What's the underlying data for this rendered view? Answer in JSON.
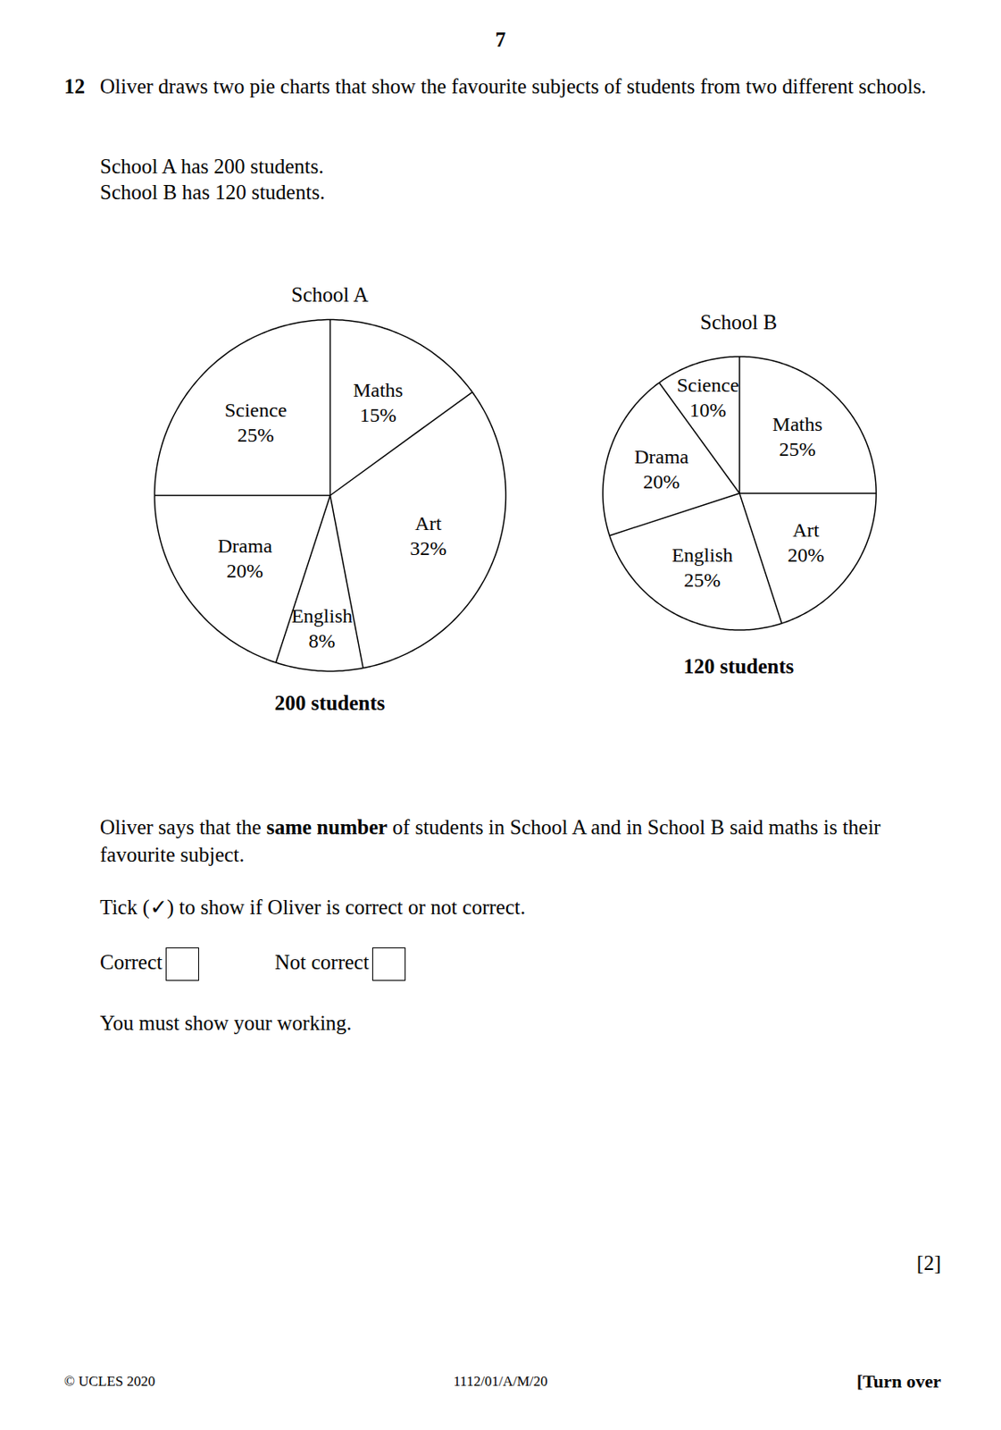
{
  "page_number": "7",
  "question": {
    "number": "12",
    "text": "Oliver draws two pie charts that show the favourite subjects of students from two different schools.",
    "facts": [
      "School A has 200 students.",
      "School B has 120 students."
    ],
    "statement": {
      "before": "Oliver says that the ",
      "bold": "same number",
      "after": " of students in School A and in School B said maths is their favourite subject."
    },
    "instruction": "Tick (✓) to show if Oliver is correct or not correct.",
    "options": [
      "Correct",
      "Not correct"
    ],
    "working": "You must show your working.",
    "marks": "[2]"
  },
  "chart_data": [
    {
      "type": "pie",
      "title": "School A",
      "categories": [
        "Maths",
        "Art",
        "English",
        "Drama",
        "Science"
      ],
      "values": [
        15,
        32,
        8,
        20,
        25
      ],
      "value_labels": [
        "15%",
        "32%",
        "8%",
        "20%",
        "25%"
      ],
      "data_labels": true,
      "color": "#ffffff",
      "caption": "200 students"
    },
    {
      "type": "pie",
      "title": "School B",
      "categories": [
        "Maths",
        "Art",
        "English",
        "Drama",
        "Science"
      ],
      "values": [
        25,
        20,
        25,
        20,
        10
      ],
      "value_labels": [
        "25%",
        "20%",
        "25%",
        "20%",
        "10%"
      ],
      "data_labels": true,
      "color": "#ffffff",
      "caption": "120 students"
    }
  ],
  "footer": {
    "left": "© UCLES 2020",
    "center": "1112/01/A/M/20",
    "right": "[Turn over"
  }
}
